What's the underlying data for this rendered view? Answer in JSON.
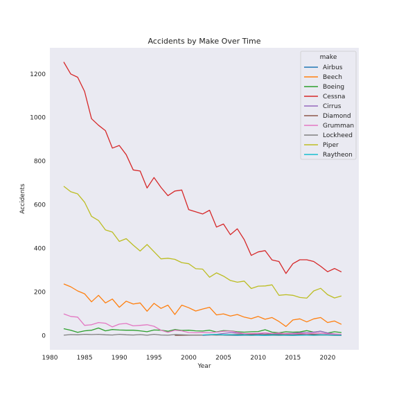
{
  "chart_data": {
    "type": "line",
    "title": "Accidents by Make Over Time",
    "xlabel": "Year",
    "ylabel": "Accidents",
    "xlim": [
      1980,
      2024.5
    ],
    "ylim": [
      -65,
      1320
    ],
    "xticks": [
      1980,
      1985,
      1990,
      1995,
      2000,
      2005,
      2010,
      2015,
      2020
    ],
    "yticks": [
      0,
      200,
      400,
      600,
      800,
      1000,
      1200
    ],
    "grid": false,
    "background": "#eaeaf2",
    "legend": {
      "title": "make",
      "placement": "top-right"
    },
    "series": [
      {
        "name": "Airbus",
        "color": "#1f77b4",
        "x": [
          2005,
          2007,
          2009,
          2011,
          2013,
          2015,
          2017,
          2019,
          2021,
          2022
        ],
        "values": [
          2,
          1,
          2,
          1,
          2,
          1,
          2,
          3,
          2,
          1
        ]
      },
      {
        "name": "Beech",
        "color": "#ff7f0e",
        "x": [
          1982,
          1983,
          1984,
          1985,
          1986,
          1987,
          1988,
          1989,
          1990,
          1991,
          1992,
          1993,
          1994,
          1995,
          1996,
          1997,
          1998,
          1999,
          2000,
          2001,
          2002,
          2003,
          2004,
          2005,
          2006,
          2007,
          2008,
          2009,
          2010,
          2011,
          2012,
          2013,
          2014,
          2015,
          2016,
          2017,
          2018,
          2019,
          2020,
          2021,
          2022
        ],
        "values": [
          237,
          224,
          205,
          192,
          155,
          185,
          150,
          168,
          130,
          158,
          145,
          150,
          112,
          148,
          125,
          140,
          97,
          140,
          128,
          113,
          122,
          130,
          95,
          100,
          90,
          97,
          85,
          78,
          88,
          75,
          83,
          65,
          42,
          72,
          77,
          63,
          77,
          83,
          60,
          67,
          52
        ]
      },
      {
        "name": "Boeing",
        "color": "#2ca02c",
        "x": [
          1982,
          1983,
          1984,
          1985,
          1986,
          1987,
          1988,
          1989,
          1990,
          1991,
          1992,
          1993,
          1994,
          1995,
          1996,
          1997,
          1998,
          1999,
          2000,
          2001,
          2002,
          2003,
          2004,
          2005,
          2006,
          2007,
          2008,
          2009,
          2010,
          2011,
          2012,
          2013,
          2014,
          2015,
          2016,
          2017,
          2018,
          2019,
          2020,
          2021,
          2022
        ],
        "values": [
          32,
          25,
          15,
          22,
          25,
          35,
          22,
          28,
          26,
          25,
          25,
          22,
          18,
          26,
          25,
          20,
          28,
          24,
          25,
          22,
          21,
          25,
          17,
          23,
          22,
          18,
          16,
          18,
          19,
          27,
          16,
          13,
          18,
          16,
          17,
          23,
          16,
          20,
          12,
          18,
          14
        ]
      },
      {
        "name": "Cessna",
        "color": "#d62728",
        "x": [
          1982,
          1983,
          1984,
          1985,
          1986,
          1987,
          1988,
          1989,
          1990,
          1991,
          1992,
          1993,
          1994,
          1995,
          1996,
          1997,
          1998,
          1999,
          2000,
          2001,
          2002,
          2003,
          2004,
          2005,
          2006,
          2007,
          2008,
          2009,
          2010,
          2011,
          2012,
          2013,
          2014,
          2015,
          2016,
          2017,
          2018,
          2019,
          2020,
          2021,
          2022
        ],
        "values": [
          1255,
          1200,
          1185,
          1120,
          995,
          965,
          940,
          860,
          872,
          830,
          760,
          755,
          677,
          725,
          680,
          642,
          663,
          668,
          578,
          568,
          558,
          575,
          498,
          512,
          463,
          490,
          440,
          368,
          384,
          390,
          347,
          340,
          285,
          330,
          348,
          348,
          340,
          318,
          293,
          308,
          292
        ]
      },
      {
        "name": "Cirrus",
        "color": "#9467bd",
        "x": [
          2002,
          2003,
          2004,
          2005,
          2006,
          2007,
          2008,
          2009,
          2010,
          2011,
          2012,
          2013,
          2014,
          2015,
          2016,
          2017,
          2018,
          2019,
          2020,
          2021,
          2022
        ],
        "values": [
          1,
          3,
          6,
          10,
          14,
          12,
          9,
          8,
          7,
          12,
          8,
          9,
          10,
          11,
          13,
          14,
          16,
          20,
          12,
          8,
          5
        ]
      },
      {
        "name": "Diamond",
        "color": "#8c564b",
        "x": [
          1998,
          2000,
          2002,
          2004,
          2006,
          2008,
          2010,
          2012,
          2014,
          2016,
          2018,
          2020,
          2022
        ],
        "values": [
          1,
          2,
          3,
          4,
          5,
          6,
          5,
          6,
          5,
          7,
          6,
          4,
          3
        ]
      },
      {
        "name": "Grumman",
        "color": "#e377c2",
        "x": [
          1982,
          1983,
          1984,
          1985,
          1986,
          1987,
          1988,
          1989,
          1990,
          1991,
          1992,
          1993,
          1994,
          1995,
          1996,
          1997,
          1998,
          1999,
          2000,
          2001,
          2002,
          2003,
          2004,
          2005,
          2006,
          2007,
          2008,
          2009,
          2010,
          2011,
          2012,
          2013,
          2014,
          2015,
          2016,
          2017,
          2018,
          2019,
          2020,
          2021,
          2022
        ],
        "values": [
          100,
          88,
          85,
          47,
          50,
          60,
          57,
          40,
          53,
          56,
          45,
          47,
          50,
          43,
          25,
          15,
          25,
          22,
          14,
          13,
          15,
          13,
          16,
          20,
          21,
          15,
          9,
          10,
          11,
          13,
          10,
          12,
          9,
          8,
          10,
          8,
          11,
          12,
          8,
          7,
          6
        ]
      },
      {
        "name": "Lockheed",
        "color": "#7f7f7f",
        "x": [
          1982,
          1983,
          1984,
          1985,
          1986,
          1987,
          1988,
          1989,
          1990,
          1991,
          1992,
          1993,
          1994,
          1995,
          1996,
          1997,
          1998,
          1999,
          2000,
          2001,
          2002,
          2003,
          2004,
          2005,
          2006,
          2007,
          2008,
          2009,
          2010,
          2011,
          2012,
          2013,
          2014,
          2015,
          2016,
          2017,
          2018,
          2019,
          2020,
          2021,
          2022
        ],
        "values": [
          2,
          5,
          4,
          6,
          5,
          6,
          4,
          3,
          6,
          4,
          3,
          5,
          2,
          6,
          3,
          2,
          5,
          4,
          3,
          2,
          3,
          4,
          2,
          3,
          2,
          3,
          2,
          1,
          2,
          3,
          2,
          1,
          2,
          1,
          3,
          2,
          1,
          2,
          2,
          1,
          1
        ]
      },
      {
        "name": "Piper",
        "color": "#bcbd22",
        "x": [
          1982,
          1983,
          1984,
          1985,
          1986,
          1987,
          1988,
          1989,
          1990,
          1991,
          1992,
          1993,
          1994,
          1995,
          1996,
          1997,
          1998,
          1999,
          2000,
          2001,
          2002,
          2003,
          2004,
          2005,
          2006,
          2007,
          2008,
          2009,
          2010,
          2011,
          2012,
          2013,
          2014,
          2015,
          2016,
          2017,
          2018,
          2019,
          2020,
          2021,
          2022
        ],
        "values": [
          685,
          660,
          650,
          612,
          547,
          528,
          485,
          475,
          432,
          445,
          415,
          388,
          418,
          385,
          352,
          355,
          350,
          335,
          330,
          307,
          305,
          268,
          288,
          273,
          253,
          245,
          250,
          216,
          227,
          228,
          233,
          185,
          188,
          185,
          175,
          172,
          205,
          217,
          188,
          173,
          182
        ]
      },
      {
        "name": "Raytheon",
        "color": "#17becf",
        "x": [
          2002,
          2003,
          2004,
          2005,
          2006,
          2007,
          2008,
          2009,
          2010,
          2011,
          2012,
          2013,
          2014,
          2015,
          2016,
          2017,
          2018,
          2019,
          2020,
          2021,
          2022
        ],
        "values": [
          3,
          5,
          6,
          4,
          5,
          3,
          4,
          2,
          3,
          2,
          4,
          3,
          2,
          3,
          2,
          3,
          2,
          4,
          3,
          2,
          2
        ]
      }
    ]
  }
}
